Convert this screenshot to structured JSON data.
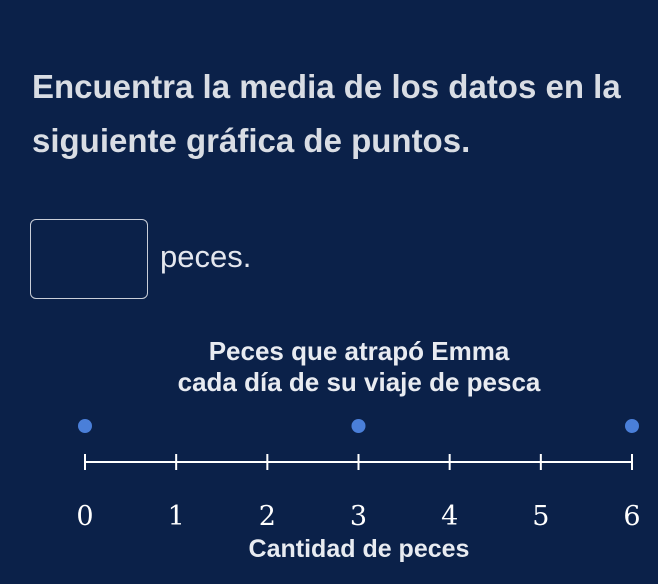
{
  "question": {
    "line1": "Encuentra la media de los datos en la",
    "line2": "siguiente gráfica de puntos."
  },
  "answer": {
    "value": "",
    "unit": "peces."
  },
  "colors": {
    "background": "#0b2149",
    "dot": "#4a7fd9",
    "axis": "#ffffff"
  },
  "chart_data": {
    "type": "scatter",
    "subtype": "dot-plot",
    "title": "Peces que atrapó Emma",
    "subtitle": "cada día de su viaje de pesca",
    "xlabel": "Cantidad de peces",
    "xlim": [
      0,
      6
    ],
    "ticks": [
      "0",
      "1",
      "2",
      "3",
      "4",
      "5",
      "6"
    ],
    "points": [
      {
        "x": 0,
        "count": 1
      },
      {
        "x": 3,
        "count": 1
      },
      {
        "x": 6,
        "count": 1
      }
    ]
  }
}
